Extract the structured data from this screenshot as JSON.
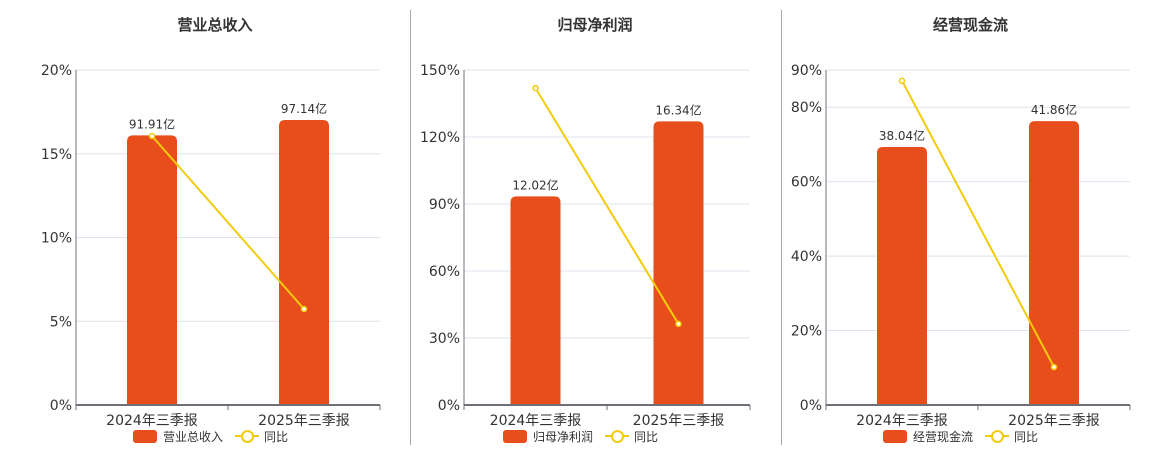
{
  "colors": {
    "bar": "#E84E1B",
    "line": "#F2CC0C",
    "grid": "#DDE3EE",
    "axis": "#6E7079",
    "divider": "#A8A8A8"
  },
  "chart_data": [
    {
      "type": "bar+line",
      "title": "营业总收入",
      "categories": [
        "2024年三季报",
        "2025年三季报"
      ],
      "series": [
        {
          "name": "营业总收入",
          "type": "bar",
          "values": [
            91.91,
            97.14
          ],
          "labels": [
            "91.91亿",
            "97.14亿"
          ],
          "unit": "亿"
        },
        {
          "name": "同比",
          "type": "line",
          "values": [
            16.06,
            5.73
          ],
          "unit": "%"
        }
      ],
      "yaxis": {
        "ticks": [
          "0%",
          "5%",
          "10%",
          "15%",
          "20%"
        ],
        "tick_values": [
          0,
          5,
          10,
          15,
          20
        ],
        "ylim": [
          0,
          20
        ]
      },
      "bar_max": 114.2,
      "grid": true,
      "legend_position": "bottom"
    },
    {
      "type": "bar+line",
      "title": "归母净利润",
      "categories": [
        "2024年三季报",
        "2025年三季报"
      ],
      "series": [
        {
          "name": "归母净利润",
          "type": "bar",
          "values": [
            12.02,
            16.34
          ],
          "labels": [
            "12.02亿",
            "16.34亿"
          ],
          "unit": "亿"
        },
        {
          "name": "同比",
          "type": "line",
          "values": [
            141.9,
            36.3
          ],
          "unit": "%"
        }
      ],
      "yaxis": {
        "ticks": [
          "0%",
          "30%",
          "60%",
          "90%",
          "120%",
          "150%"
        ],
        "tick_values": [
          0,
          30,
          60,
          90,
          120,
          150
        ],
        "ylim": [
          0,
          150
        ]
      },
      "bar_max": 19.3,
      "grid": true,
      "legend_position": "bottom"
    },
    {
      "type": "bar+line",
      "title": "经营现金流",
      "categories": [
        "2024年三季报",
        "2025年三季报"
      ],
      "series": [
        {
          "name": "经营现金流",
          "type": "bar",
          "values": [
            38.04,
            41.86
          ],
          "labels": [
            "38.04亿",
            "41.86亿"
          ],
          "unit": "亿"
        },
        {
          "name": "同比",
          "type": "line",
          "values": [
            87.1,
            10.2
          ],
          "unit": "%"
        }
      ],
      "yaxis": {
        "ticks": [
          "0%",
          "20%",
          "40%",
          "60%",
          "80%",
          "90%"
        ],
        "tick_values": [
          0,
          20,
          40,
          60,
          80,
          90
        ],
        "ylim": [
          0,
          90
        ]
      },
      "bar_max": 49.4,
      "grid": true,
      "legend_position": "bottom"
    }
  ],
  "panels": [
    {
      "title": "营业总收入",
      "legend_bar": "营业总收入",
      "legend_line": "同比"
    },
    {
      "title": "归母净利润",
      "legend_bar": "归母净利润",
      "legend_line": "同比"
    },
    {
      "title": "经营现金流",
      "legend_bar": "经营现金流",
      "legend_line": "同比"
    }
  ]
}
